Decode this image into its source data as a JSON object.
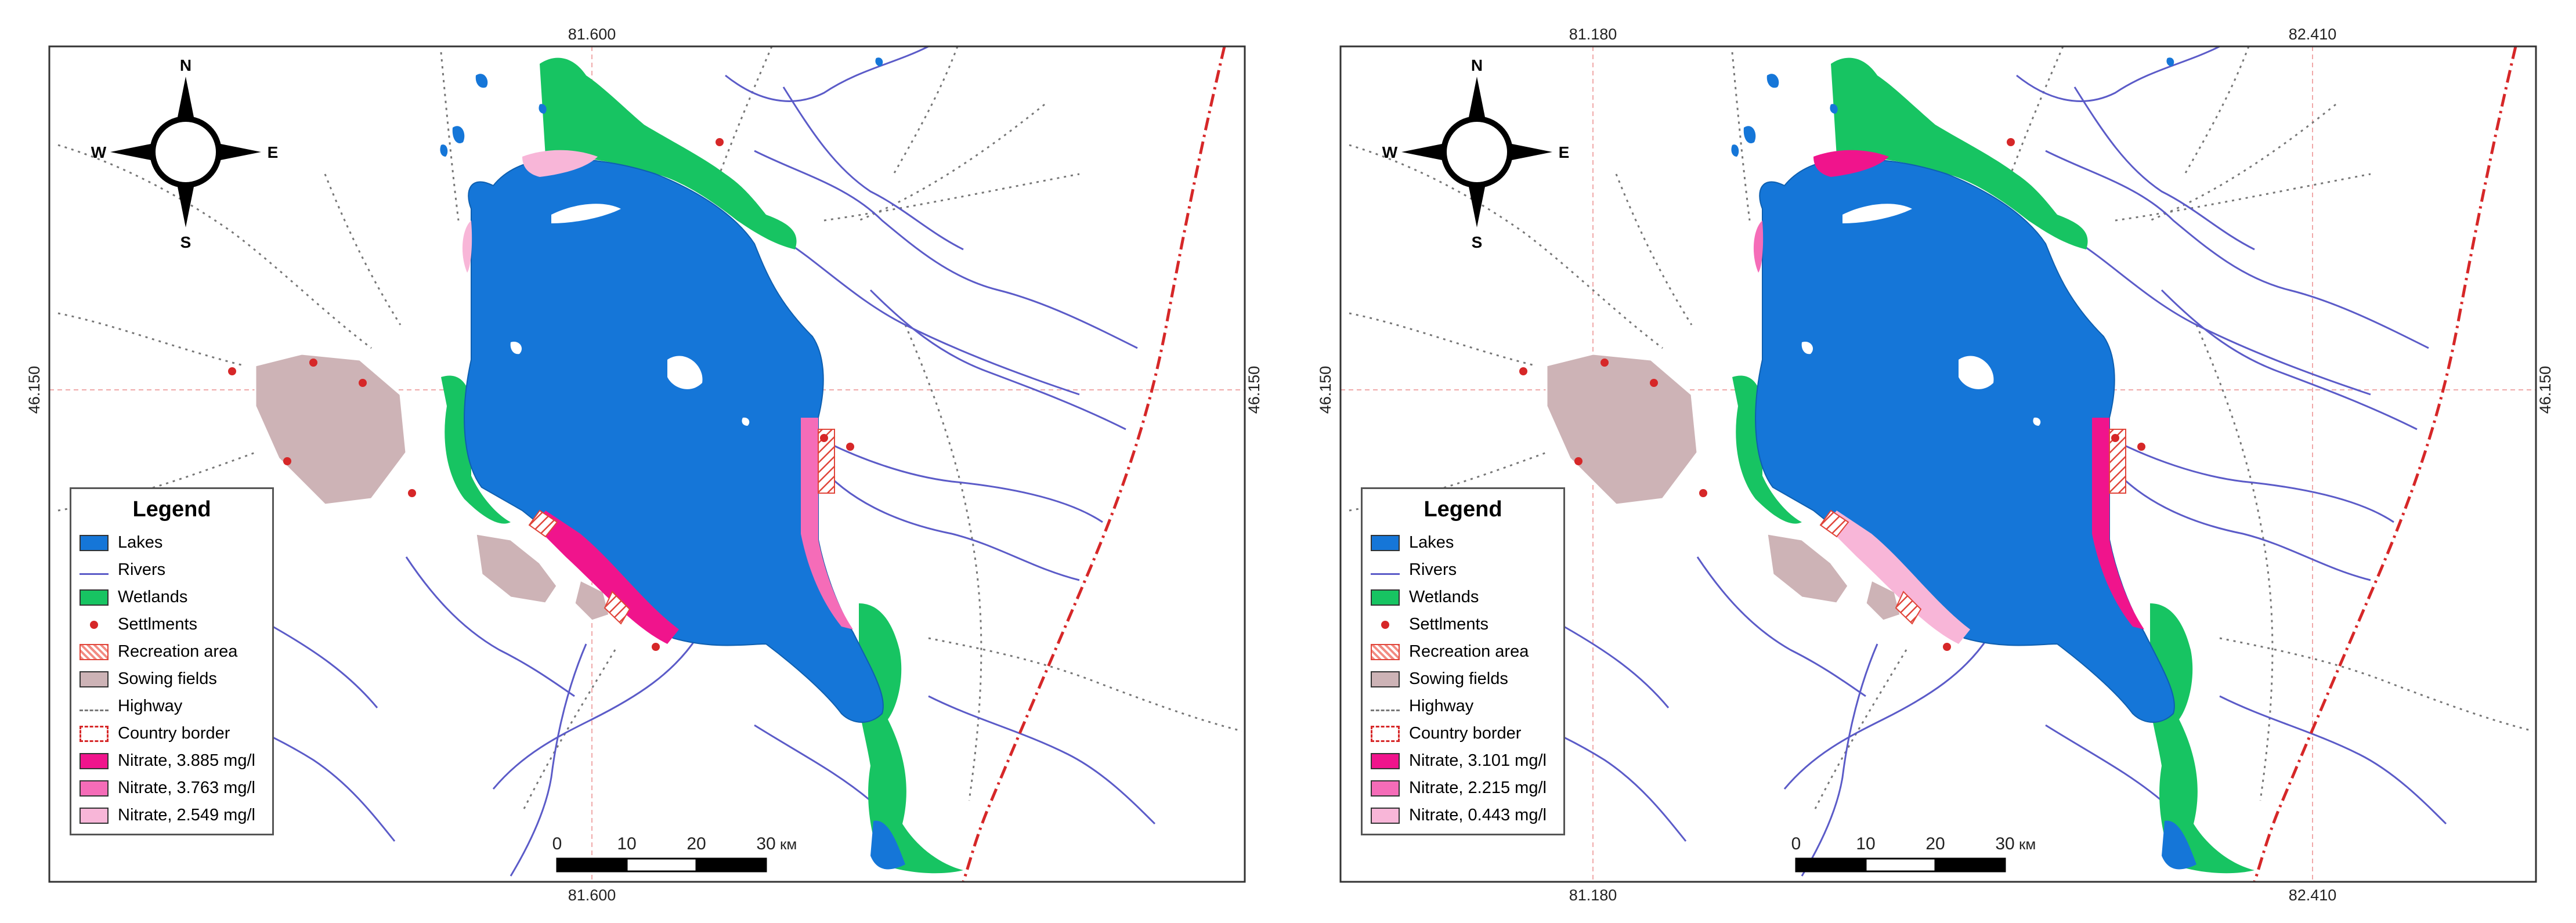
{
  "colors": {
    "lake": "#1576d8",
    "river": "#5b5bc8",
    "wetland": "#17c462",
    "settlement": "#d62728",
    "recreation": "#e0453a",
    "sowing": "#cdb3b6",
    "highway": "#777777",
    "border": "#d62728"
  },
  "compass": {
    "n": "N",
    "s": "S",
    "e": "E",
    "w": "W"
  },
  "scale_bar": {
    "ticks": [
      "0",
      "10",
      "20",
      "30"
    ],
    "unit": "км"
  },
  "panels": [
    {
      "coords": {
        "top": [
          "81.600"
        ],
        "bottom": [
          "81.600"
        ],
        "left": "46.150",
        "right": "46.150"
      },
      "legend": {
        "title": "Legend",
        "items": [
          {
            "label": "Lakes",
            "symbol": "fill",
            "color": "#1576d8"
          },
          {
            "label": "Rivers",
            "symbol": "line",
            "color": "#5b5bc8"
          },
          {
            "label": "Wetlands",
            "symbol": "fill",
            "color": "#17c462"
          },
          {
            "label": "Settlments",
            "symbol": "dot",
            "color": "#d62728"
          },
          {
            "label": "Recreation area",
            "symbol": "hatch",
            "color": "#e0453a"
          },
          {
            "label": "Sowing fields",
            "symbol": "fill",
            "color": "#cdb3b6"
          },
          {
            "label": "Highway",
            "symbol": "dash",
            "color": "#777777"
          },
          {
            "label": "Country border",
            "symbol": "border",
            "color": "#d62728"
          },
          {
            "label": "Nitrate, 3.885 mg/l",
            "symbol": "fill",
            "color": "#f0148c"
          },
          {
            "label": "Nitrate, 3.763 mg/l",
            "symbol": "fill",
            "color": "#f56cb8"
          },
          {
            "label": "Nitrate, 2.549 mg/l",
            "symbol": "fill",
            "color": "#f8b6d8"
          }
        ]
      },
      "zones": {
        "southwest": "#f0148c",
        "east": "#f56cb8",
        "north": "#f8b6d8",
        "west": "#f8b6d8"
      }
    },
    {
      "coords": {
        "top": [
          "81.180",
          "82.410"
        ],
        "bottom": [
          "81.180",
          "82.410"
        ],
        "left": "46.150",
        "right": "46.150"
      },
      "legend": {
        "title": "Legend",
        "items": [
          {
            "label": "Lakes",
            "symbol": "fill",
            "color": "#1576d8"
          },
          {
            "label": "Rivers",
            "symbol": "line",
            "color": "#5b5bc8"
          },
          {
            "label": "Wetlands",
            "symbol": "fill",
            "color": "#17c462"
          },
          {
            "label": "Settlments",
            "symbol": "dot",
            "color": "#d62728"
          },
          {
            "label": "Recreation area",
            "symbol": "hatch",
            "color": "#e0453a"
          },
          {
            "label": "Sowing fields",
            "symbol": "fill",
            "color": "#cdb3b6"
          },
          {
            "label": "Highway",
            "symbol": "dash",
            "color": "#777777"
          },
          {
            "label": "Country border",
            "symbol": "border",
            "color": "#d62728"
          },
          {
            "label": "Nitrate, 3.101 mg/l",
            "symbol": "fill",
            "color": "#f0148c"
          },
          {
            "label": "Nitrate, 2.215 mg/l",
            "symbol": "fill",
            "color": "#f56cb8"
          },
          {
            "label": "Nitrate, 0.443 mg/l",
            "symbol": "fill",
            "color": "#f8b6d8"
          }
        ]
      },
      "zones": {
        "southwest": "#f8b6d8",
        "east": "#f0148c",
        "north": "#f0148c",
        "west": "#f56cb8"
      }
    }
  ]
}
